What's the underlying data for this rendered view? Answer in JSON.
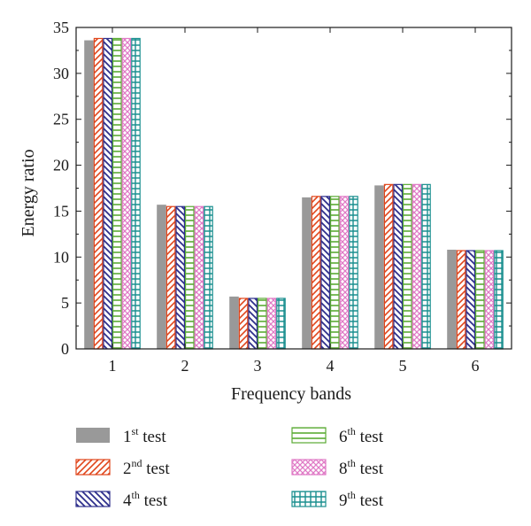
{
  "chart_data": {
    "type": "bar",
    "title": "",
    "xlabel": "Frequency bands",
    "ylabel": "Energy ratio",
    "categories": [
      "1",
      "2",
      "3",
      "4",
      "5",
      "6"
    ],
    "ylim": [
      0,
      35
    ],
    "yticks": [
      0,
      5,
      10,
      15,
      20,
      25,
      30,
      35
    ],
    "grid": false,
    "legend_position": "bottom",
    "series": [
      {
        "name": "1st test",
        "ordinal": "1",
        "suffix": "st",
        "pattern": "solid",
        "color": "#999999",
        "values": [
          33.6,
          15.7,
          5.7,
          16.5,
          17.8,
          10.8
        ]
      },
      {
        "name": "2nd test",
        "ordinal": "2",
        "suffix": "nd",
        "pattern": "forward-diagonal",
        "color": "#e0451b",
        "values": [
          33.8,
          15.5,
          5.5,
          16.6,
          17.9,
          10.7
        ]
      },
      {
        "name": "4th test",
        "ordinal": "4",
        "suffix": "th",
        "pattern": "back-diagonal",
        "color": "#2e2f8c",
        "values": [
          33.8,
          15.5,
          5.5,
          16.6,
          17.9,
          10.7
        ]
      },
      {
        "name": "6th test",
        "ordinal": "6",
        "suffix": "th",
        "pattern": "horizontal",
        "color": "#5aab34",
        "values": [
          33.8,
          15.5,
          5.5,
          16.6,
          17.9,
          10.7
        ]
      },
      {
        "name": "8th test",
        "ordinal": "8",
        "suffix": "th",
        "pattern": "crosshatch",
        "color": "#e07ac6",
        "values": [
          33.8,
          15.5,
          5.5,
          16.6,
          17.9,
          10.7
        ]
      },
      {
        "name": "9th test",
        "ordinal": "9",
        "suffix": "th",
        "pattern": "grid",
        "color": "#1a8f8f",
        "values": [
          33.8,
          15.5,
          5.5,
          16.6,
          17.9,
          10.7
        ]
      }
    ]
  }
}
